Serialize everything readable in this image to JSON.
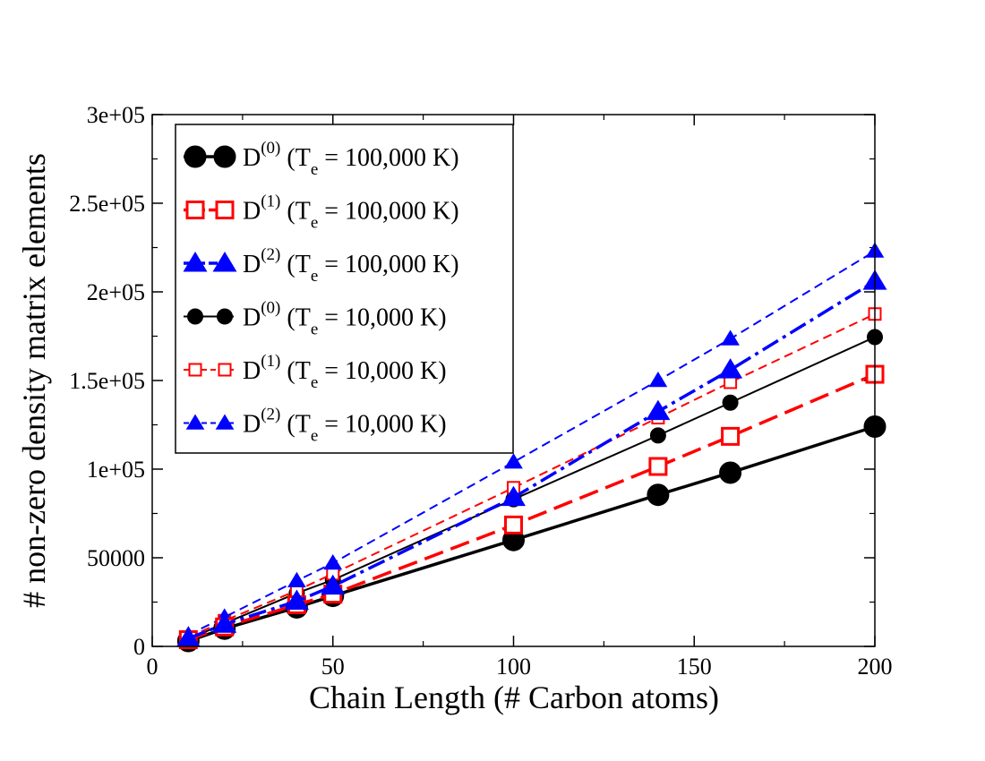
{
  "chart_data": {
    "type": "line",
    "title": "",
    "xlabel": "Chain Length (# Carbon atoms)",
    "ylabel": "# non-zero density matrix elements",
    "xlim": [
      0,
      200
    ],
    "ylim": [
      0,
      300000
    ],
    "x_ticks": [
      {
        "value": 0,
        "label": "0"
      },
      {
        "value": 50,
        "label": "50"
      },
      {
        "value": 100,
        "label": "100"
      },
      {
        "value": 150,
        "label": "150"
      },
      {
        "value": 200,
        "label": "200"
      }
    ],
    "y_ticks": [
      {
        "value": 0,
        "label": "0"
      },
      {
        "value": 50000,
        "label": "50000"
      },
      {
        "value": 100000,
        "label": "1e+05"
      },
      {
        "value": 150000,
        "label": "1.5e+05"
      },
      {
        "value": 200000,
        "label": "2e+05"
      },
      {
        "value": 250000,
        "label": "2.5e+05"
      },
      {
        "value": 300000,
        "label": "3e+05"
      }
    ],
    "x_minor_step": 25,
    "y_minor_step": 25000,
    "grid": false,
    "legend_position": "top-left",
    "series": [
      {
        "id": "d0-100k",
        "name": "D(0) (Te = 100,000 K)",
        "legend": {
          "base": "D",
          "sup": "(0)",
          "pre": "(T",
          "sub": "e",
          "post": " = 100,000 K)"
        },
        "color": "#000000",
        "marker": "circle",
        "marker_filled": true,
        "marker_size": "large",
        "line_style": "solid",
        "line_width": "thick",
        "x": [
          10,
          20,
          40,
          50,
          100,
          140,
          160,
          200
        ],
        "values": [
          3000,
          10000,
          22000,
          28500,
          60000,
          85500,
          98000,
          124000
        ]
      },
      {
        "id": "d1-100k",
        "name": "D(1) (Te = 100,000 K)",
        "legend": {
          "base": "D",
          "sup": "(1)",
          "pre": "(T",
          "sub": "e",
          "post": " = 100,000 K)"
        },
        "color": "#ff0000",
        "marker": "square",
        "marker_filled": false,
        "marker_size": "large",
        "line_style": "long-dash",
        "line_width": "thick",
        "x": [
          10,
          20,
          40,
          50,
          100,
          140,
          160,
          200
        ],
        "values": [
          3800,
          11000,
          23500,
          29500,
          68500,
          101500,
          118500,
          153500
        ]
      },
      {
        "id": "d2-100k",
        "name": "D(2) (Te = 100,000 K)",
        "legend": {
          "base": "D",
          "sup": "(2)",
          "pre": "(T",
          "sub": "e",
          "post": " = 100,000 K)"
        },
        "color": "#0000ff",
        "marker": "triangle",
        "marker_filled": true,
        "marker_size": "large",
        "line_style": "dash-dot",
        "line_width": "thick",
        "x": [
          10,
          20,
          40,
          50,
          100,
          140,
          160,
          200
        ],
        "values": [
          4500,
          12500,
          25500,
          34000,
          84000,
          132500,
          156000,
          206000
        ]
      },
      {
        "id": "d0-10k",
        "name": "D(0) (Te = 10,000 K)",
        "legend": {
          "base": "D",
          "sup": "(0)",
          "pre": "(T",
          "sub": "e",
          "post": " = 10,000 K)"
        },
        "color": "#000000",
        "marker": "circle",
        "marker_filled": true,
        "marker_size": "small",
        "line_style": "solid",
        "line_width": "thin",
        "x": [
          10,
          20,
          40,
          50,
          100,
          140,
          160,
          200
        ],
        "values": [
          4000,
          13000,
          30000,
          37500,
          83000,
          119000,
          137500,
          174500
        ]
      },
      {
        "id": "d1-10k",
        "name": "D(1) (Te = 10,000 K)",
        "legend": {
          "base": "D",
          "sup": "(1)",
          "pre": "(T",
          "sub": "e",
          "post": " = 10,000 K)"
        },
        "color": "#ff0000",
        "marker": "square",
        "marker_filled": false,
        "marker_size": "small",
        "line_style": "dash",
        "line_width": "thin",
        "x": [
          10,
          20,
          40,
          50,
          100,
          140,
          160,
          200
        ],
        "values": [
          5000,
          14500,
          31500,
          41000,
          89500,
          129000,
          149000,
          187500
        ]
      },
      {
        "id": "d2-10k",
        "name": "D(2) (Te = 10,000 K)",
        "legend": {
          "base": "D",
          "sup": "(2)",
          "pre": "(T",
          "sub": "e",
          "post": " = 10,000 K)"
        },
        "color": "#0000ff",
        "marker": "triangle",
        "marker_filled": true,
        "marker_size": "small",
        "line_style": "dash",
        "line_width": "thin",
        "x": [
          10,
          20,
          40,
          50,
          100,
          140,
          160,
          200
        ],
        "values": [
          6500,
          16500,
          37000,
          47000,
          104000,
          150000,
          173500,
          223000
        ]
      }
    ]
  }
}
